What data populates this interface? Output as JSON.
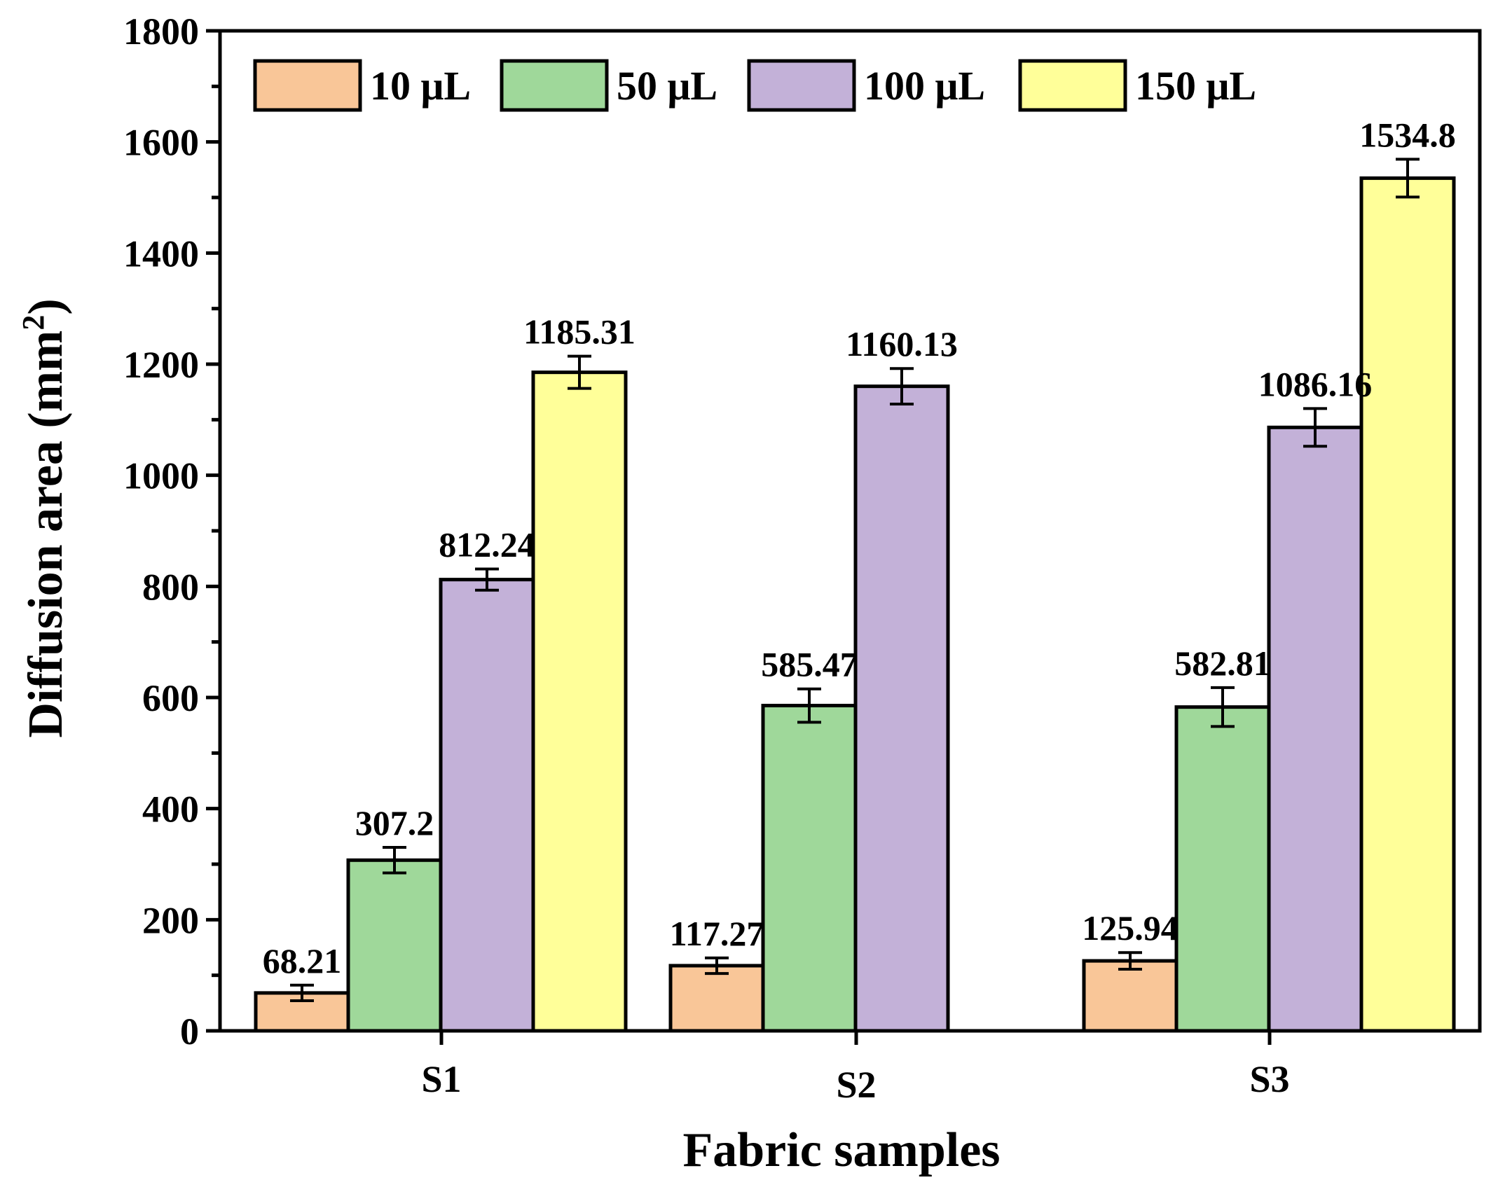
{
  "chart_data": {
    "type": "bar",
    "xlabel": "Fabric samples",
    "ylabel": "Diffusion area (mm",
    "ylabel_superscript": "2",
    "ylabel_close": ")",
    "ylim": [
      0,
      1800
    ],
    "yticks": [
      0,
      200,
      400,
      600,
      800,
      1000,
      1200,
      1400,
      1600,
      1800
    ],
    "ytick_labels": [
      "0",
      "200",
      "400",
      "600",
      "800",
      "1000",
      "1200",
      "1400",
      "1600",
      "1800"
    ],
    "categories": [
      "S1",
      "S2",
      "S3"
    ],
    "legend_position": "top-left",
    "grid": false,
    "series": [
      {
        "name": "10 μL",
        "color": "#f9c698",
        "values": [
          68.21,
          117.27,
          125.94
        ],
        "errors": [
          14,
          14,
          15
        ],
        "labels": [
          "68.21",
          "117.27",
          "125.94"
        ]
      },
      {
        "name": "50 μL",
        "color": "#9fd89a",
        "values": [
          307.2,
          585.47,
          582.81
        ],
        "errors": [
          23,
          30,
          35
        ],
        "labels": [
          "307.2",
          "585.47",
          "582.81"
        ]
      },
      {
        "name": "100 μL",
        "color": "#c3b1d8",
        "values": [
          812.24,
          1160.13,
          1086.16
        ],
        "errors": [
          19,
          32,
          34
        ],
        "labels": [
          "812.24",
          "",
          "1086.16"
        ]
      },
      {
        "name": "150 μL",
        "color": "#ffff99",
        "values": [
          1185.31,
          null,
          1534.8
        ],
        "errors": [
          29,
          0,
          34
        ],
        "labels": [
          "1185.31",
          "",
          "1534.8"
        ]
      }
    ],
    "extra_labels": [
      {
        "category": 1,
        "series": 2,
        "text": "1160.13"
      }
    ]
  }
}
